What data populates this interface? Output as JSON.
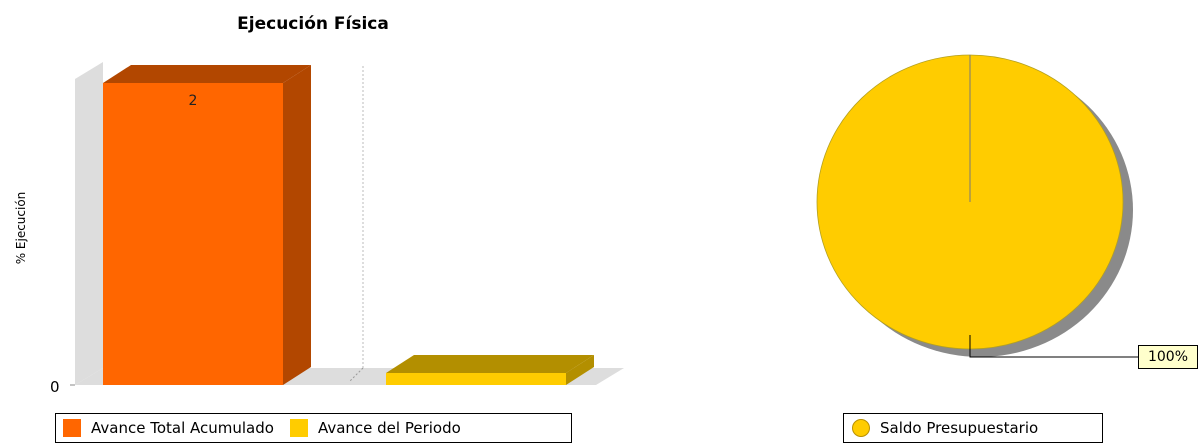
{
  "chart_data": [
    {
      "type": "bar",
      "title": "Ejecución Física",
      "ylabel": "% Ejecución",
      "xlabel": "",
      "categories": [
        "Avance Total Acumulado",
        "Avance del Periodo"
      ],
      "values": [
        2,
        0
      ],
      "data_labels": [
        "2",
        ""
      ],
      "yticks": [
        "0"
      ],
      "ylim": [
        0,
        2
      ],
      "grid": true,
      "legend_position": "bottom",
      "colors": {
        "front": [
          "#ff6600",
          "#ffcc00"
        ],
        "side": [
          "#b24700",
          "#b38f00"
        ]
      }
    },
    {
      "type": "pie",
      "title": "",
      "slices": [
        {
          "name": "Saldo Presupuestario",
          "value": 100,
          "label": "100%"
        }
      ],
      "colors": [
        "#ffcc00"
      ],
      "legend_position": "bottom"
    }
  ]
}
